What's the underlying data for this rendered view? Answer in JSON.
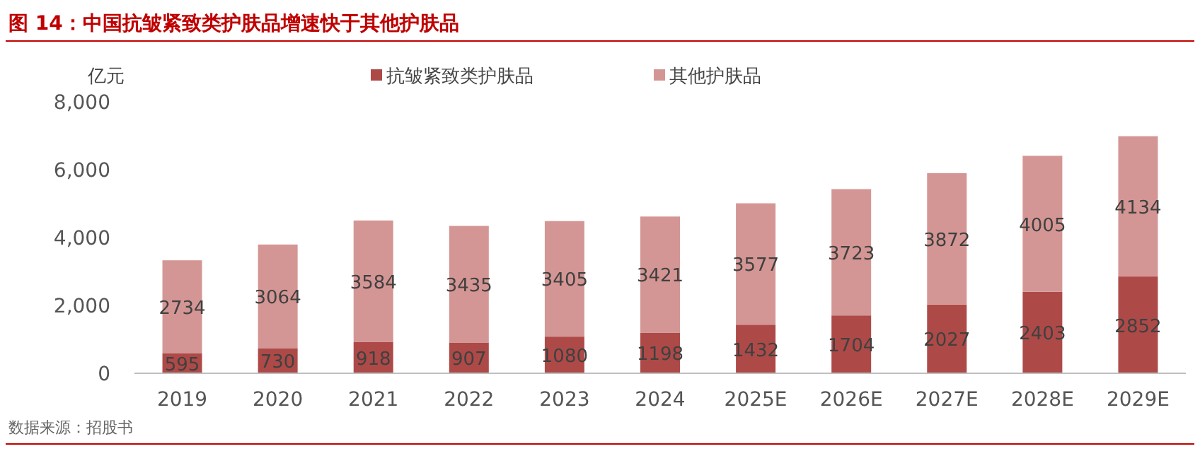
{
  "chart_data": {
    "type": "bar",
    "title": "图 14：中国抗皱紧致类护肤品增速快于其他护肤品",
    "ylabel": "亿元",
    "categories": [
      "2019",
      "2020",
      "2021",
      "2022",
      "2023",
      "2024",
      "2025E",
      "2026E",
      "2027E",
      "2028E",
      "2029E"
    ],
    "series": [
      {
        "name": "抗皱紧致类护肤品",
        "color": "#ad4a48",
        "values": [
          595,
          730,
          918,
          907,
          1080,
          1198,
          1432,
          1704,
          2027,
          2403,
          2852
        ]
      },
      {
        "name": "其他护肤品",
        "color": "#d49694",
        "values": [
          2734,
          3064,
          3584,
          3435,
          3405,
          3421,
          3577,
          3723,
          3872,
          4005,
          4134
        ]
      }
    ],
    "stacked": true,
    "ylim": [
      0,
      8000
    ],
    "yticks": [
      {
        "value": 0,
        "label": "0"
      },
      {
        "value": 2000,
        "label": "2,000"
      },
      {
        "value": 4000,
        "label": "4,000"
      },
      {
        "value": 6000,
        "label": "6,000"
      },
      {
        "value": 8000,
        "label": "8,000"
      }
    ],
    "data_labels": true,
    "legend": "top",
    "annotations": [
      "数据来源：招股书"
    ]
  }
}
